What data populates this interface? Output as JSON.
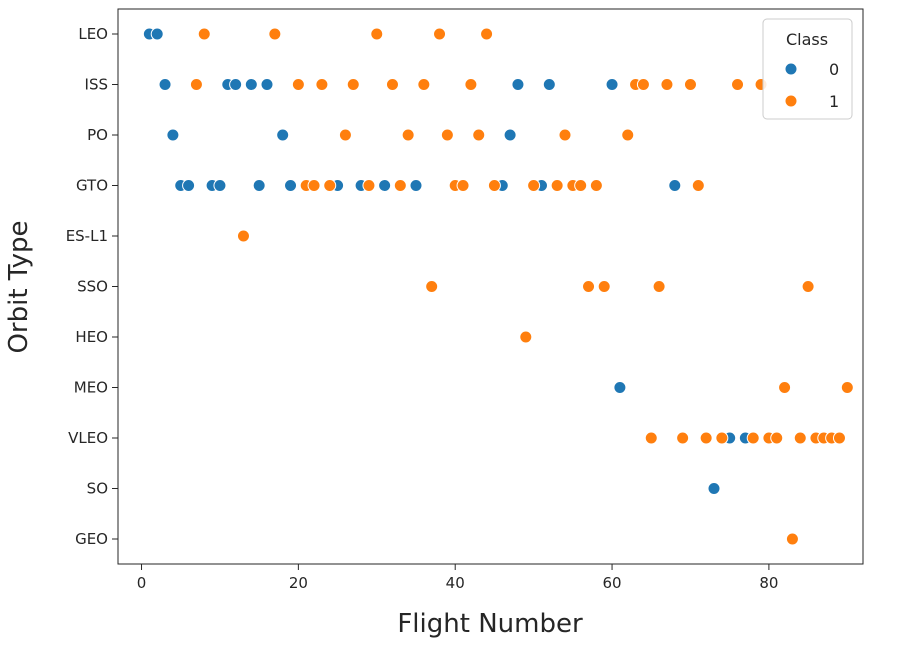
{
  "chart_data": {
    "type": "scatter",
    "xlabel": "Flight Number",
    "ylabel": "Orbit Type",
    "xlim": [
      -3,
      92
    ],
    "x_ticks": [
      0,
      20,
      40,
      60,
      80
    ],
    "categories": [
      "LEO",
      "ISS",
      "PO",
      "GTO",
      "ES-L1",
      "SSO",
      "HEO",
      "MEO",
      "VLEO",
      "SO",
      "GEO"
    ],
    "legend": {
      "title": "Class",
      "placement": "top-right"
    },
    "grid": false,
    "series": [
      {
        "name": "0",
        "color": "#1f77b4",
        "points": [
          {
            "x": 1,
            "orbit": "LEO"
          },
          {
            "x": 2,
            "orbit": "LEO"
          },
          {
            "x": 3,
            "orbit": "ISS"
          },
          {
            "x": 11,
            "orbit": "ISS"
          },
          {
            "x": 12,
            "orbit": "ISS"
          },
          {
            "x": 14,
            "orbit": "ISS"
          },
          {
            "x": 16,
            "orbit": "ISS"
          },
          {
            "x": 48,
            "orbit": "ISS"
          },
          {
            "x": 52,
            "orbit": "ISS"
          },
          {
            "x": 60,
            "orbit": "ISS"
          },
          {
            "x": 4,
            "orbit": "PO"
          },
          {
            "x": 18,
            "orbit": "PO"
          },
          {
            "x": 47,
            "orbit": "PO"
          },
          {
            "x": 5,
            "orbit": "GTO"
          },
          {
            "x": 6,
            "orbit": "GTO"
          },
          {
            "x": 9,
            "orbit": "GTO"
          },
          {
            "x": 10,
            "orbit": "GTO"
          },
          {
            "x": 15,
            "orbit": "GTO"
          },
          {
            "x": 19,
            "orbit": "GTO"
          },
          {
            "x": 25,
            "orbit": "GTO"
          },
          {
            "x": 28,
            "orbit": "GTO"
          },
          {
            "x": 31,
            "orbit": "GTO"
          },
          {
            "x": 35,
            "orbit": "GTO"
          },
          {
            "x": 46,
            "orbit": "GTO"
          },
          {
            "x": 51,
            "orbit": "GTO"
          },
          {
            "x": 68,
            "orbit": "GTO"
          },
          {
            "x": 61,
            "orbit": "MEO"
          },
          {
            "x": 75,
            "orbit": "VLEO"
          },
          {
            "x": 77,
            "orbit": "VLEO"
          },
          {
            "x": 73,
            "orbit": "SO"
          }
        ]
      },
      {
        "name": "1",
        "color": "#ff7f0e",
        "points": [
          {
            "x": 8,
            "orbit": "LEO"
          },
          {
            "x": 17,
            "orbit": "LEO"
          },
          {
            "x": 30,
            "orbit": "LEO"
          },
          {
            "x": 38,
            "orbit": "LEO"
          },
          {
            "x": 44,
            "orbit": "LEO"
          },
          {
            "x": 7,
            "orbit": "ISS"
          },
          {
            "x": 20,
            "orbit": "ISS"
          },
          {
            "x": 23,
            "orbit": "ISS"
          },
          {
            "x": 27,
            "orbit": "ISS"
          },
          {
            "x": 32,
            "orbit": "ISS"
          },
          {
            "x": 36,
            "orbit": "ISS"
          },
          {
            "x": 42,
            "orbit": "ISS"
          },
          {
            "x": 63,
            "orbit": "ISS"
          },
          {
            "x": 64,
            "orbit": "ISS"
          },
          {
            "x": 67,
            "orbit": "ISS"
          },
          {
            "x": 70,
            "orbit": "ISS"
          },
          {
            "x": 76,
            "orbit": "ISS"
          },
          {
            "x": 79,
            "orbit": "ISS"
          },
          {
            "x": 26,
            "orbit": "PO"
          },
          {
            "x": 34,
            "orbit": "PO"
          },
          {
            "x": 39,
            "orbit": "PO"
          },
          {
            "x": 43,
            "orbit": "PO"
          },
          {
            "x": 54,
            "orbit": "PO"
          },
          {
            "x": 62,
            "orbit": "PO"
          },
          {
            "x": 21,
            "orbit": "GTO"
          },
          {
            "x": 22,
            "orbit": "GTO"
          },
          {
            "x": 24,
            "orbit": "GTO"
          },
          {
            "x": 29,
            "orbit": "GTO"
          },
          {
            "x": 33,
            "orbit": "GTO"
          },
          {
            "x": 40,
            "orbit": "GTO"
          },
          {
            "x": 41,
            "orbit": "GTO"
          },
          {
            "x": 45,
            "orbit": "GTO"
          },
          {
            "x": 50,
            "orbit": "GTO"
          },
          {
            "x": 53,
            "orbit": "GTO"
          },
          {
            "x": 55,
            "orbit": "GTO"
          },
          {
            "x": 56,
            "orbit": "GTO"
          },
          {
            "x": 58,
            "orbit": "GTO"
          },
          {
            "x": 71,
            "orbit": "GTO"
          },
          {
            "x": 13,
            "orbit": "ES-L1"
          },
          {
            "x": 37,
            "orbit": "SSO"
          },
          {
            "x": 57,
            "orbit": "SSO"
          },
          {
            "x": 59,
            "orbit": "SSO"
          },
          {
            "x": 66,
            "orbit": "SSO"
          },
          {
            "x": 85,
            "orbit": "SSO"
          },
          {
            "x": 49,
            "orbit": "HEO"
          },
          {
            "x": 82,
            "orbit": "MEO"
          },
          {
            "x": 90,
            "orbit": "MEO"
          },
          {
            "x": 65,
            "orbit": "VLEO"
          },
          {
            "x": 69,
            "orbit": "VLEO"
          },
          {
            "x": 72,
            "orbit": "VLEO"
          },
          {
            "x": 74,
            "orbit": "VLEO"
          },
          {
            "x": 78,
            "orbit": "VLEO"
          },
          {
            "x": 80,
            "orbit": "VLEO"
          },
          {
            "x": 81,
            "orbit": "VLEO"
          },
          {
            "x": 84,
            "orbit": "VLEO"
          },
          {
            "x": 86,
            "orbit": "VLEO"
          },
          {
            "x": 87,
            "orbit": "VLEO"
          },
          {
            "x": 88,
            "orbit": "VLEO"
          },
          {
            "x": 89,
            "orbit": "VLEO"
          },
          {
            "x": 83,
            "orbit": "GEO"
          }
        ]
      }
    ]
  }
}
